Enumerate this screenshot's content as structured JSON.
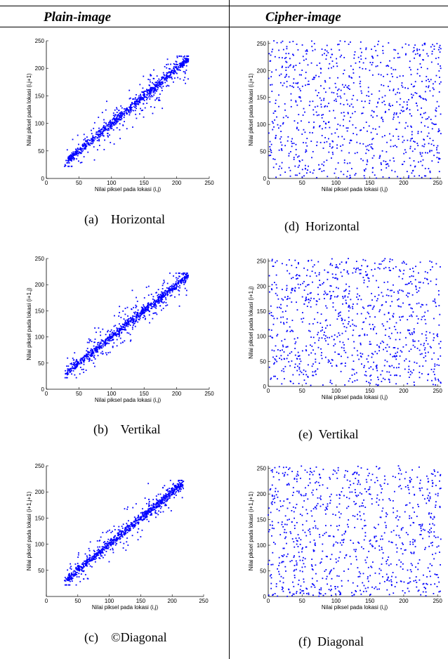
{
  "header": {
    "left": "Plain-image",
    "right": "Cipher-image"
  },
  "chart_data": [
    {
      "id": "a",
      "type": "scatter",
      "caption": "(a)    Horizontal",
      "xlabel": "Nilai piksel pada lokasi (i,j)",
      "ylabel": "Nilai piksel pada lokasi (i,j+1)",
      "xlim": [
        0,
        250
      ],
      "ylim": [
        0,
        250
      ],
      "xticks": [
        0,
        50,
        100,
        150,
        200,
        250
      ],
      "yticks": [
        0,
        50,
        100,
        150,
        200,
        250
      ],
      "color": "#0000ff",
      "pattern": "correlated",
      "seed": 11,
      "n": 950
    },
    {
      "id": "b",
      "type": "scatter",
      "caption": "(b)    Vertikal",
      "xlabel": "Nilai piksel pada lokasi (i,j)",
      "ylabel": "Nilai piksel pada lokasi (i+1,j)",
      "xlim": [
        0,
        250
      ],
      "ylim": [
        0,
        250
      ],
      "xticks": [
        0,
        50,
        100,
        150,
        200,
        250
      ],
      "yticks": [
        0,
        50,
        100,
        150,
        200,
        250
      ],
      "color": "#0000ff",
      "pattern": "correlated",
      "seed": 23,
      "n": 950
    },
    {
      "id": "c",
      "type": "scatter",
      "caption": "(c)    ©Diagonal",
      "xlabel": "Nilai piksel pada lokasi (i,j)",
      "ylabel": "Nilai piksel pada lokasi (i+1,j+1)",
      "xlim": [
        0,
        250
      ],
      "ylim": [
        0,
        250
      ],
      "xticks": [
        0,
        50,
        100,
        150,
        200,
        250
      ],
      "yticks": [
        50,
        100,
        150,
        200,
        250
      ],
      "color": "#0000ff",
      "pattern": "correlated",
      "seed": 37,
      "n": 950
    },
    {
      "id": "d",
      "type": "scatter",
      "caption": "(d)  Horizontal",
      "xlabel": "Nilai piksel pada lokasi (i,j)",
      "ylabel": "Nilai piksel pada lokasi (i,j+1)",
      "xlim": [
        0,
        255
      ],
      "ylim": [
        0,
        255
      ],
      "xticks": [
        0,
        50,
        100,
        150,
        200,
        250
      ],
      "yticks": [
        0,
        50,
        100,
        150,
        200,
        250
      ],
      "color": "#0000ff",
      "pattern": "uniform",
      "seed": 41,
      "n": 900
    },
    {
      "id": "e",
      "type": "scatter",
      "caption": "(e)  Vertikal",
      "xlabel": "Nilai piksel pada lokasi (i,j)",
      "ylabel": "Nilai piksel pada lokasi (i+1,j)",
      "xlim": [
        0,
        255
      ],
      "ylim": [
        0,
        255
      ],
      "xticks": [
        0,
        50,
        100,
        150,
        200,
        250
      ],
      "yticks": [
        0,
        50,
        100,
        150,
        200,
        250
      ],
      "color": "#0000ff",
      "pattern": "uniform",
      "seed": 53,
      "n": 900
    },
    {
      "id": "f",
      "type": "scatter",
      "caption": "(f)  Diagonal",
      "xlabel": "Nilai piksel pada lokasi (i,j)",
      "ylabel": "Nilai piksel pada lokasi (i+1,j+1)",
      "xlim": [
        0,
        255
      ],
      "ylim": [
        0,
        255
      ],
      "xticks": [
        0,
        50,
        100,
        150,
        200,
        250
      ],
      "yticks": [
        0,
        50,
        100,
        150,
        200,
        250
      ],
      "color": "#0000ff",
      "pattern": "uniform",
      "seed": 67,
      "n": 900
    }
  ]
}
